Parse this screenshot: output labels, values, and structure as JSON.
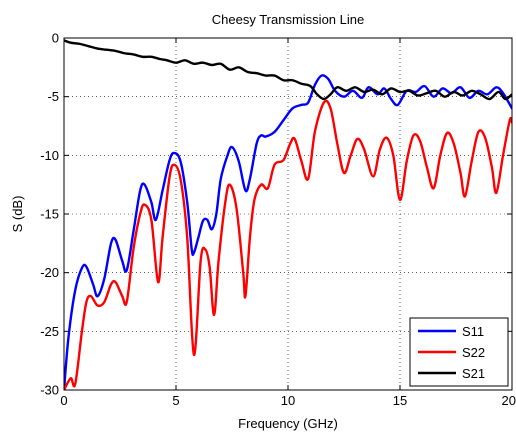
{
  "chart_data": {
    "type": "line",
    "title": "Cheesy Transmission Line",
    "xlabel": "Frequency (GHz)",
    "ylabel": "S (dB)",
    "xlim": [
      0,
      20
    ],
    "ylim": [
      -30,
      0
    ],
    "xticks": [
      0,
      5,
      10,
      15,
      20
    ],
    "xtick_labels": [
      "0",
      "5",
      "10",
      "15",
      "20"
    ],
    "yticks": [
      0,
      -5,
      -10,
      -15,
      -20,
      -25,
      -30
    ],
    "ytick_labels": [
      "0",
      "-5",
      "-10",
      "-15",
      "-20",
      "-25",
      "-30"
    ],
    "grid": true,
    "legend_position": "bottom-right",
    "series": [
      {
        "name": "S11",
        "color": "#0000ff",
        "points": [
          [
            0,
            -30
          ],
          [
            0.2,
            -25.5
          ],
          [
            0.5,
            -21.5
          ],
          [
            0.8,
            -19.6
          ],
          [
            1.0,
            -19.5
          ],
          [
            1.3,
            -21.0
          ],
          [
            1.5,
            -22.0
          ],
          [
            1.8,
            -20.5
          ],
          [
            2.1,
            -17.5
          ],
          [
            2.3,
            -17.2
          ],
          [
            2.6,
            -19.0
          ],
          [
            2.8,
            -19.8
          ],
          [
            3.1,
            -16.5
          ],
          [
            3.4,
            -13.0
          ],
          [
            3.6,
            -12.5
          ],
          [
            3.9,
            -14.0
          ],
          [
            4.1,
            -15.5
          ],
          [
            4.4,
            -13.0
          ],
          [
            4.7,
            -10.5
          ],
          [
            4.9,
            -9.8
          ],
          [
            5.2,
            -10.5
          ],
          [
            5.5,
            -14.0
          ],
          [
            5.7,
            -18.0
          ],
          [
            5.8,
            -18.3
          ],
          [
            6.0,
            -17.0
          ],
          [
            6.2,
            -15.6
          ],
          [
            6.4,
            -15.5
          ],
          [
            6.6,
            -16.3
          ],
          [
            6.8,
            -15.0
          ],
          [
            7.0,
            -12.0
          ],
          [
            7.3,
            -10.0
          ],
          [
            7.5,
            -9.3
          ],
          [
            7.8,
            -10.5
          ],
          [
            8.1,
            -13.0
          ],
          [
            8.3,
            -12.0
          ],
          [
            8.6,
            -9.0
          ],
          [
            8.8,
            -8.3
          ],
          [
            9.0,
            -8.4
          ],
          [
            9.4,
            -8.0
          ],
          [
            9.8,
            -7.0
          ],
          [
            10.2,
            -6.0
          ],
          [
            10.6,
            -5.7
          ],
          [
            10.9,
            -5.5
          ],
          [
            11.2,
            -4.0
          ],
          [
            11.5,
            -3.2
          ],
          [
            11.8,
            -3.5
          ],
          [
            12.1,
            -4.5
          ],
          [
            12.5,
            -5.0
          ],
          [
            12.9,
            -4.5
          ],
          [
            13.3,
            -5.1
          ],
          [
            13.6,
            -4.2
          ],
          [
            14.0,
            -4.8
          ],
          [
            14.3,
            -4.3
          ],
          [
            14.6,
            -5.2
          ],
          [
            14.9,
            -5.7
          ],
          [
            15.3,
            -4.5
          ],
          [
            15.7,
            -4.6
          ],
          [
            16.1,
            -4.1
          ],
          [
            16.5,
            -5.0
          ],
          [
            16.9,
            -4.3
          ],
          [
            17.3,
            -4.7
          ],
          [
            17.7,
            -4.2
          ],
          [
            18.1,
            -5.1
          ],
          [
            18.5,
            -4.5
          ],
          [
            18.9,
            -4.8
          ],
          [
            19.3,
            -4.2
          ],
          [
            19.6,
            -4.7
          ],
          [
            20.0,
            -6.0
          ]
        ]
      },
      {
        "name": "S22",
        "color": "#ff0000",
        "points": [
          [
            0,
            -30.0
          ],
          [
            0.3,
            -29.0
          ],
          [
            0.5,
            -29.5
          ],
          [
            0.8,
            -25.0
          ],
          [
            1.0,
            -22.5
          ],
          [
            1.2,
            -22.0
          ],
          [
            1.5,
            -22.8
          ],
          [
            1.8,
            -22.5
          ],
          [
            2.1,
            -21.0
          ],
          [
            2.3,
            -20.8
          ],
          [
            2.6,
            -22.0
          ],
          [
            2.8,
            -22.5
          ],
          [
            3.1,
            -18.0
          ],
          [
            3.4,
            -15.0
          ],
          [
            3.6,
            -14.2
          ],
          [
            3.9,
            -15.5
          ],
          [
            4.2,
            -20.8
          ],
          [
            4.4,
            -17.0
          ],
          [
            4.7,
            -12.0
          ],
          [
            4.9,
            -10.8
          ],
          [
            5.2,
            -12.0
          ],
          [
            5.5,
            -17.0
          ],
          [
            5.8,
            -27.0
          ],
          [
            6.1,
            -19.0
          ],
          [
            6.3,
            -18.0
          ],
          [
            6.5,
            -19.5
          ],
          [
            6.7,
            -23.6
          ],
          [
            6.9,
            -19.0
          ],
          [
            7.2,
            -14.0
          ],
          [
            7.4,
            -12.5
          ],
          [
            7.7,
            -14.5
          ],
          [
            8.0,
            -20.0
          ],
          [
            8.1,
            -22.0
          ],
          [
            8.3,
            -17.0
          ],
          [
            8.5,
            -13.8
          ],
          [
            8.8,
            -12.5
          ],
          [
            9.1,
            -12.8
          ],
          [
            9.4,
            -10.8
          ],
          [
            9.8,
            -10.4
          ],
          [
            10.1,
            -9.0
          ],
          [
            10.3,
            -8.6
          ],
          [
            10.6,
            -10.5
          ],
          [
            10.9,
            -12.0
          ],
          [
            11.2,
            -8.0
          ],
          [
            11.6,
            -5.5
          ],
          [
            11.9,
            -6.0
          ],
          [
            12.2,
            -9.0
          ],
          [
            12.5,
            -11.5
          ],
          [
            12.8,
            -10.0
          ],
          [
            13.1,
            -8.6
          ],
          [
            13.4,
            -9.5
          ],
          [
            13.8,
            -11.8
          ],
          [
            14.1,
            -9.5
          ],
          [
            14.4,
            -8.5
          ],
          [
            14.7,
            -10.0
          ],
          [
            15.0,
            -13.8
          ],
          [
            15.3,
            -10.5
          ],
          [
            15.6,
            -8.3
          ],
          [
            15.9,
            -8.8
          ],
          [
            16.2,
            -11.0
          ],
          [
            16.5,
            -12.8
          ],
          [
            16.8,
            -10.0
          ],
          [
            17.1,
            -8.1
          ],
          [
            17.4,
            -9.0
          ],
          [
            17.7,
            -11.5
          ],
          [
            17.9,
            -13.5
          ],
          [
            18.2,
            -10.5
          ],
          [
            18.5,
            -8.0
          ],
          [
            18.8,
            -8.5
          ],
          [
            19.1,
            -11.0
          ],
          [
            19.3,
            -13.2
          ],
          [
            19.6,
            -10.0
          ],
          [
            19.9,
            -7.0
          ],
          [
            20.0,
            -7.2
          ]
        ]
      },
      {
        "name": "S21",
        "color": "#000000",
        "points": [
          [
            0,
            -0.2
          ],
          [
            0.3,
            -0.4
          ],
          [
            0.7,
            -0.5
          ],
          [
            1.1,
            -0.7
          ],
          [
            1.5,
            -0.9
          ],
          [
            1.9,
            -1.0
          ],
          [
            2.3,
            -1.1
          ],
          [
            2.7,
            -1.3
          ],
          [
            3.1,
            -1.4
          ],
          [
            3.5,
            -1.6
          ],
          [
            3.9,
            -1.6
          ],
          [
            4.3,
            -1.8
          ],
          [
            4.6,
            -1.9
          ],
          [
            5.0,
            -2.1
          ],
          [
            5.4,
            -1.9
          ],
          [
            5.8,
            -2.2
          ],
          [
            6.2,
            -2.1
          ],
          [
            6.6,
            -2.3
          ],
          [
            7.0,
            -2.2
          ],
          [
            7.4,
            -2.7
          ],
          [
            7.8,
            -2.5
          ],
          [
            8.2,
            -2.9
          ],
          [
            8.6,
            -3.0
          ],
          [
            9.0,
            -3.2
          ],
          [
            9.4,
            -3.2
          ],
          [
            9.8,
            -3.6
          ],
          [
            10.2,
            -3.6
          ],
          [
            10.6,
            -3.9
          ],
          [
            11.0,
            -4.1
          ],
          [
            11.3,
            -4.8
          ],
          [
            11.6,
            -5.2
          ],
          [
            11.9,
            -4.8
          ],
          [
            12.2,
            -4.2
          ],
          [
            12.6,
            -4.5
          ],
          [
            13.0,
            -4.2
          ],
          [
            13.4,
            -4.6
          ],
          [
            13.8,
            -4.4
          ],
          [
            14.2,
            -4.8
          ],
          [
            14.6,
            -4.3
          ],
          [
            15.0,
            -4.6
          ],
          [
            15.4,
            -4.5
          ],
          [
            15.8,
            -4.9
          ],
          [
            16.2,
            -4.7
          ],
          [
            16.6,
            -4.5
          ],
          [
            17.0,
            -5.0
          ],
          [
            17.4,
            -4.6
          ],
          [
            17.8,
            -4.9
          ],
          [
            18.2,
            -4.5
          ],
          [
            18.6,
            -4.8
          ],
          [
            19.0,
            -5.2
          ],
          [
            19.4,
            -4.6
          ],
          [
            19.7,
            -5.2
          ],
          [
            20.0,
            -4.8
          ]
        ]
      }
    ]
  }
}
